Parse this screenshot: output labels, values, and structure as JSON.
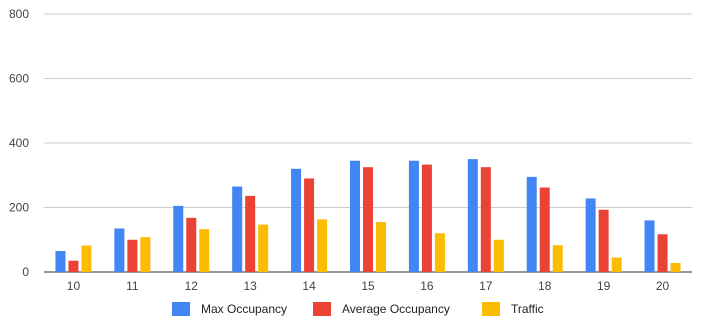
{
  "chart_data": {
    "type": "bar",
    "title": "",
    "xlabel": "",
    "ylabel": "",
    "ylim": [
      0,
      800
    ],
    "yticks": [
      0,
      200,
      400,
      600,
      800
    ],
    "grid": true,
    "legend_position": "bottom",
    "categories": [
      "10",
      "11",
      "12",
      "13",
      "14",
      "15",
      "16",
      "17",
      "18",
      "19",
      "20"
    ],
    "series": [
      {
        "name": "Max Occupancy",
        "color": "#4285F4",
        "values": [
          65,
          135,
          205,
          265,
          320,
          345,
          345,
          350,
          295,
          228,
          160
        ]
      },
      {
        "name": "Average Occupancy",
        "color": "#EA4335",
        "values": [
          35,
          100,
          168,
          236,
          290,
          325,
          333,
          325,
          262,
          193,
          117
        ]
      },
      {
        "name": "Traffic",
        "color": "#FBBC04",
        "values": [
          82,
          108,
          133,
          147,
          163,
          155,
          120,
          100,
          83,
          45,
          28
        ]
      }
    ]
  }
}
